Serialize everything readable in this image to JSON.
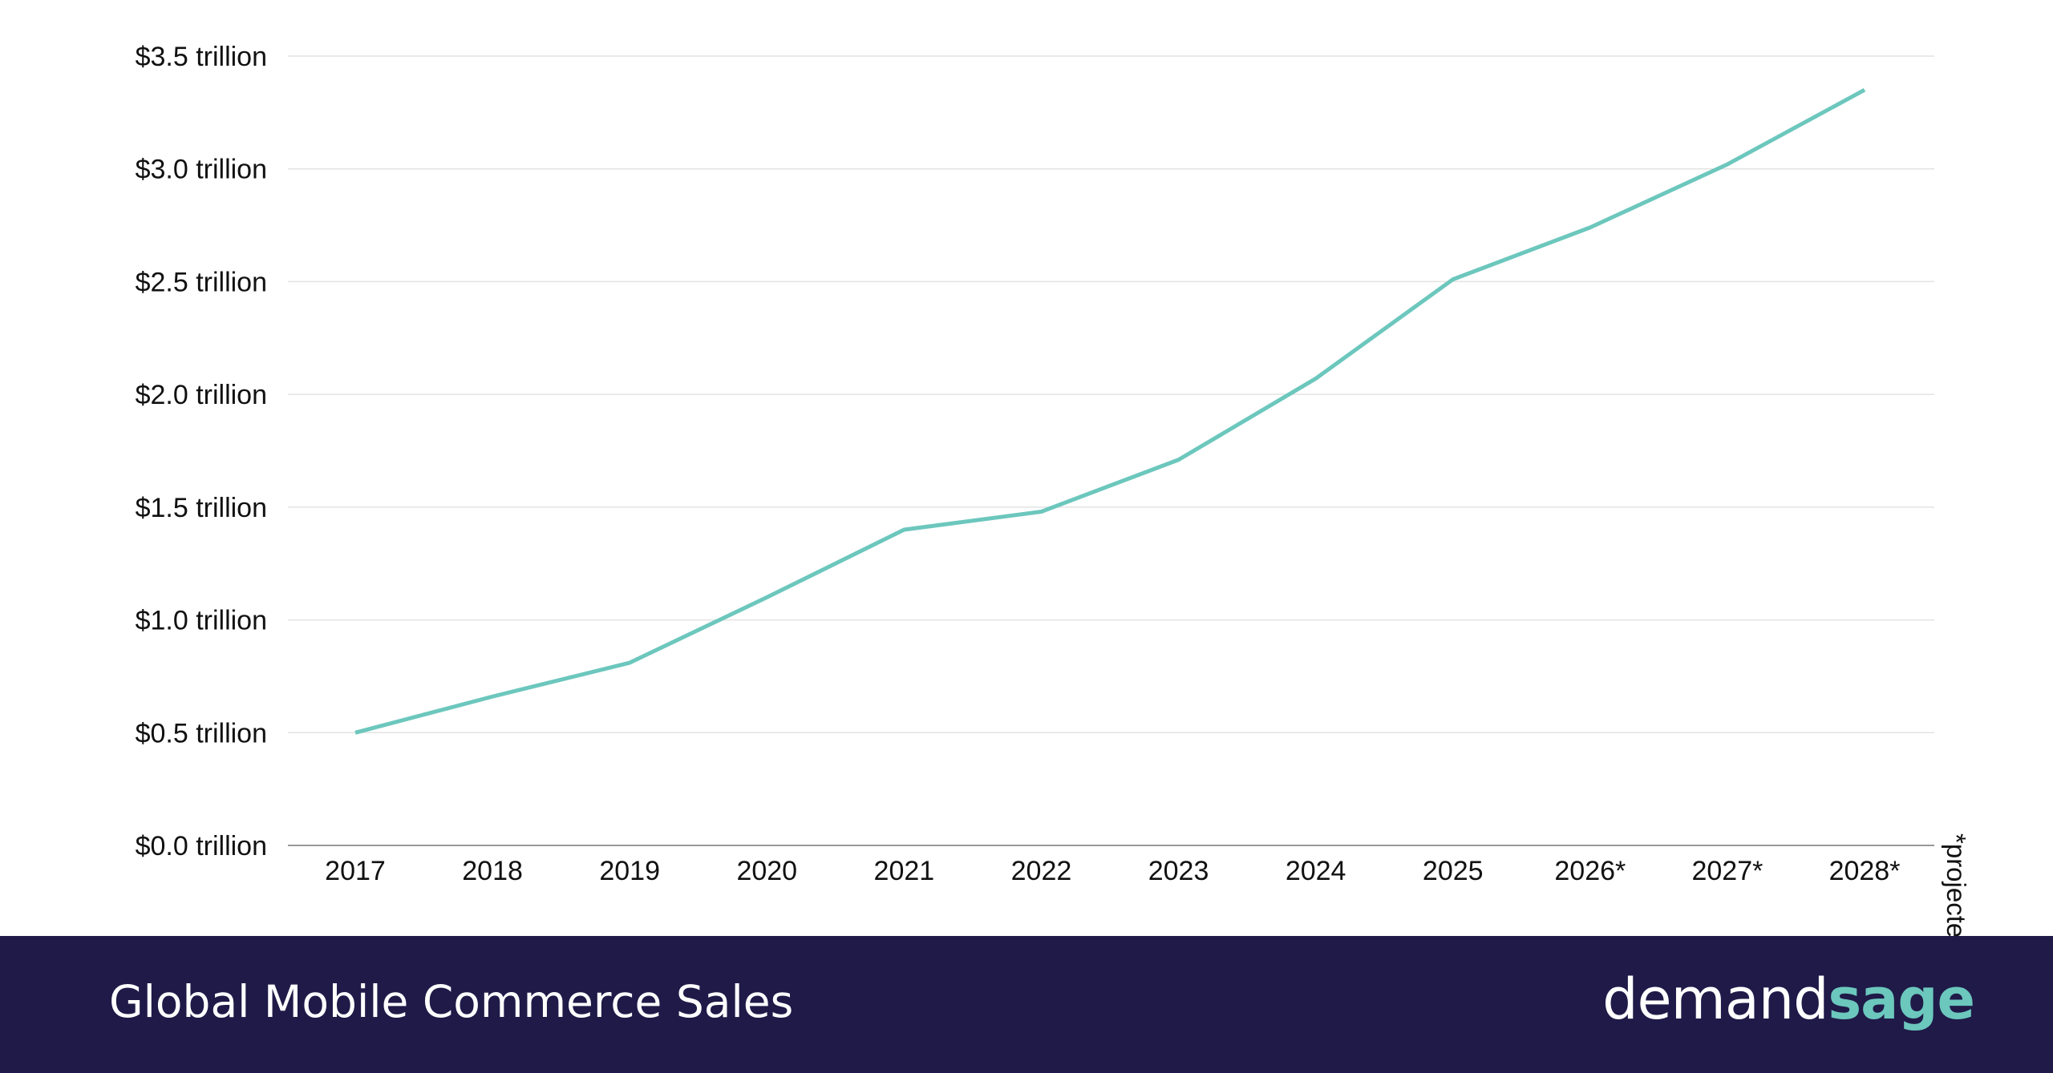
{
  "chart_data": {
    "type": "line",
    "title": "Global Mobile Commerce Sales",
    "categories": [
      "2017",
      "2018",
      "2019",
      "2020",
      "2021",
      "2022",
      "2023",
      "2024",
      "2025",
      "2026*",
      "2027*",
      "2028*"
    ],
    "series": [
      {
        "values": [
          0.5,
          0.66,
          0.81,
          1.1,
          1.4,
          1.48,
          1.71,
          2.07,
          2.51,
          2.74,
          3.02,
          3.35
        ],
        "color": "#6cc7bd"
      }
    ],
    "ylim": [
      0,
      3.5
    ],
    "yticks": [
      0,
      0.5,
      1.0,
      1.5,
      2.0,
      2.5,
      3.0,
      3.5
    ],
    "ytick_labels": [
      "$0.0 trillion",
      "$0.5 trillion",
      "$1.0 trillion",
      "$1.5 trillion",
      "$2.0 trillion",
      "$2.5 trillion",
      "$3.0 trillion",
      "$3.5 trillion"
    ],
    "grid": true,
    "note": "*projected"
  },
  "footer": {
    "title": "Global Mobile Commerce Sales",
    "background": "#1f1a48"
  },
  "logo": {
    "part1": "demand",
    "part2": "sage"
  }
}
